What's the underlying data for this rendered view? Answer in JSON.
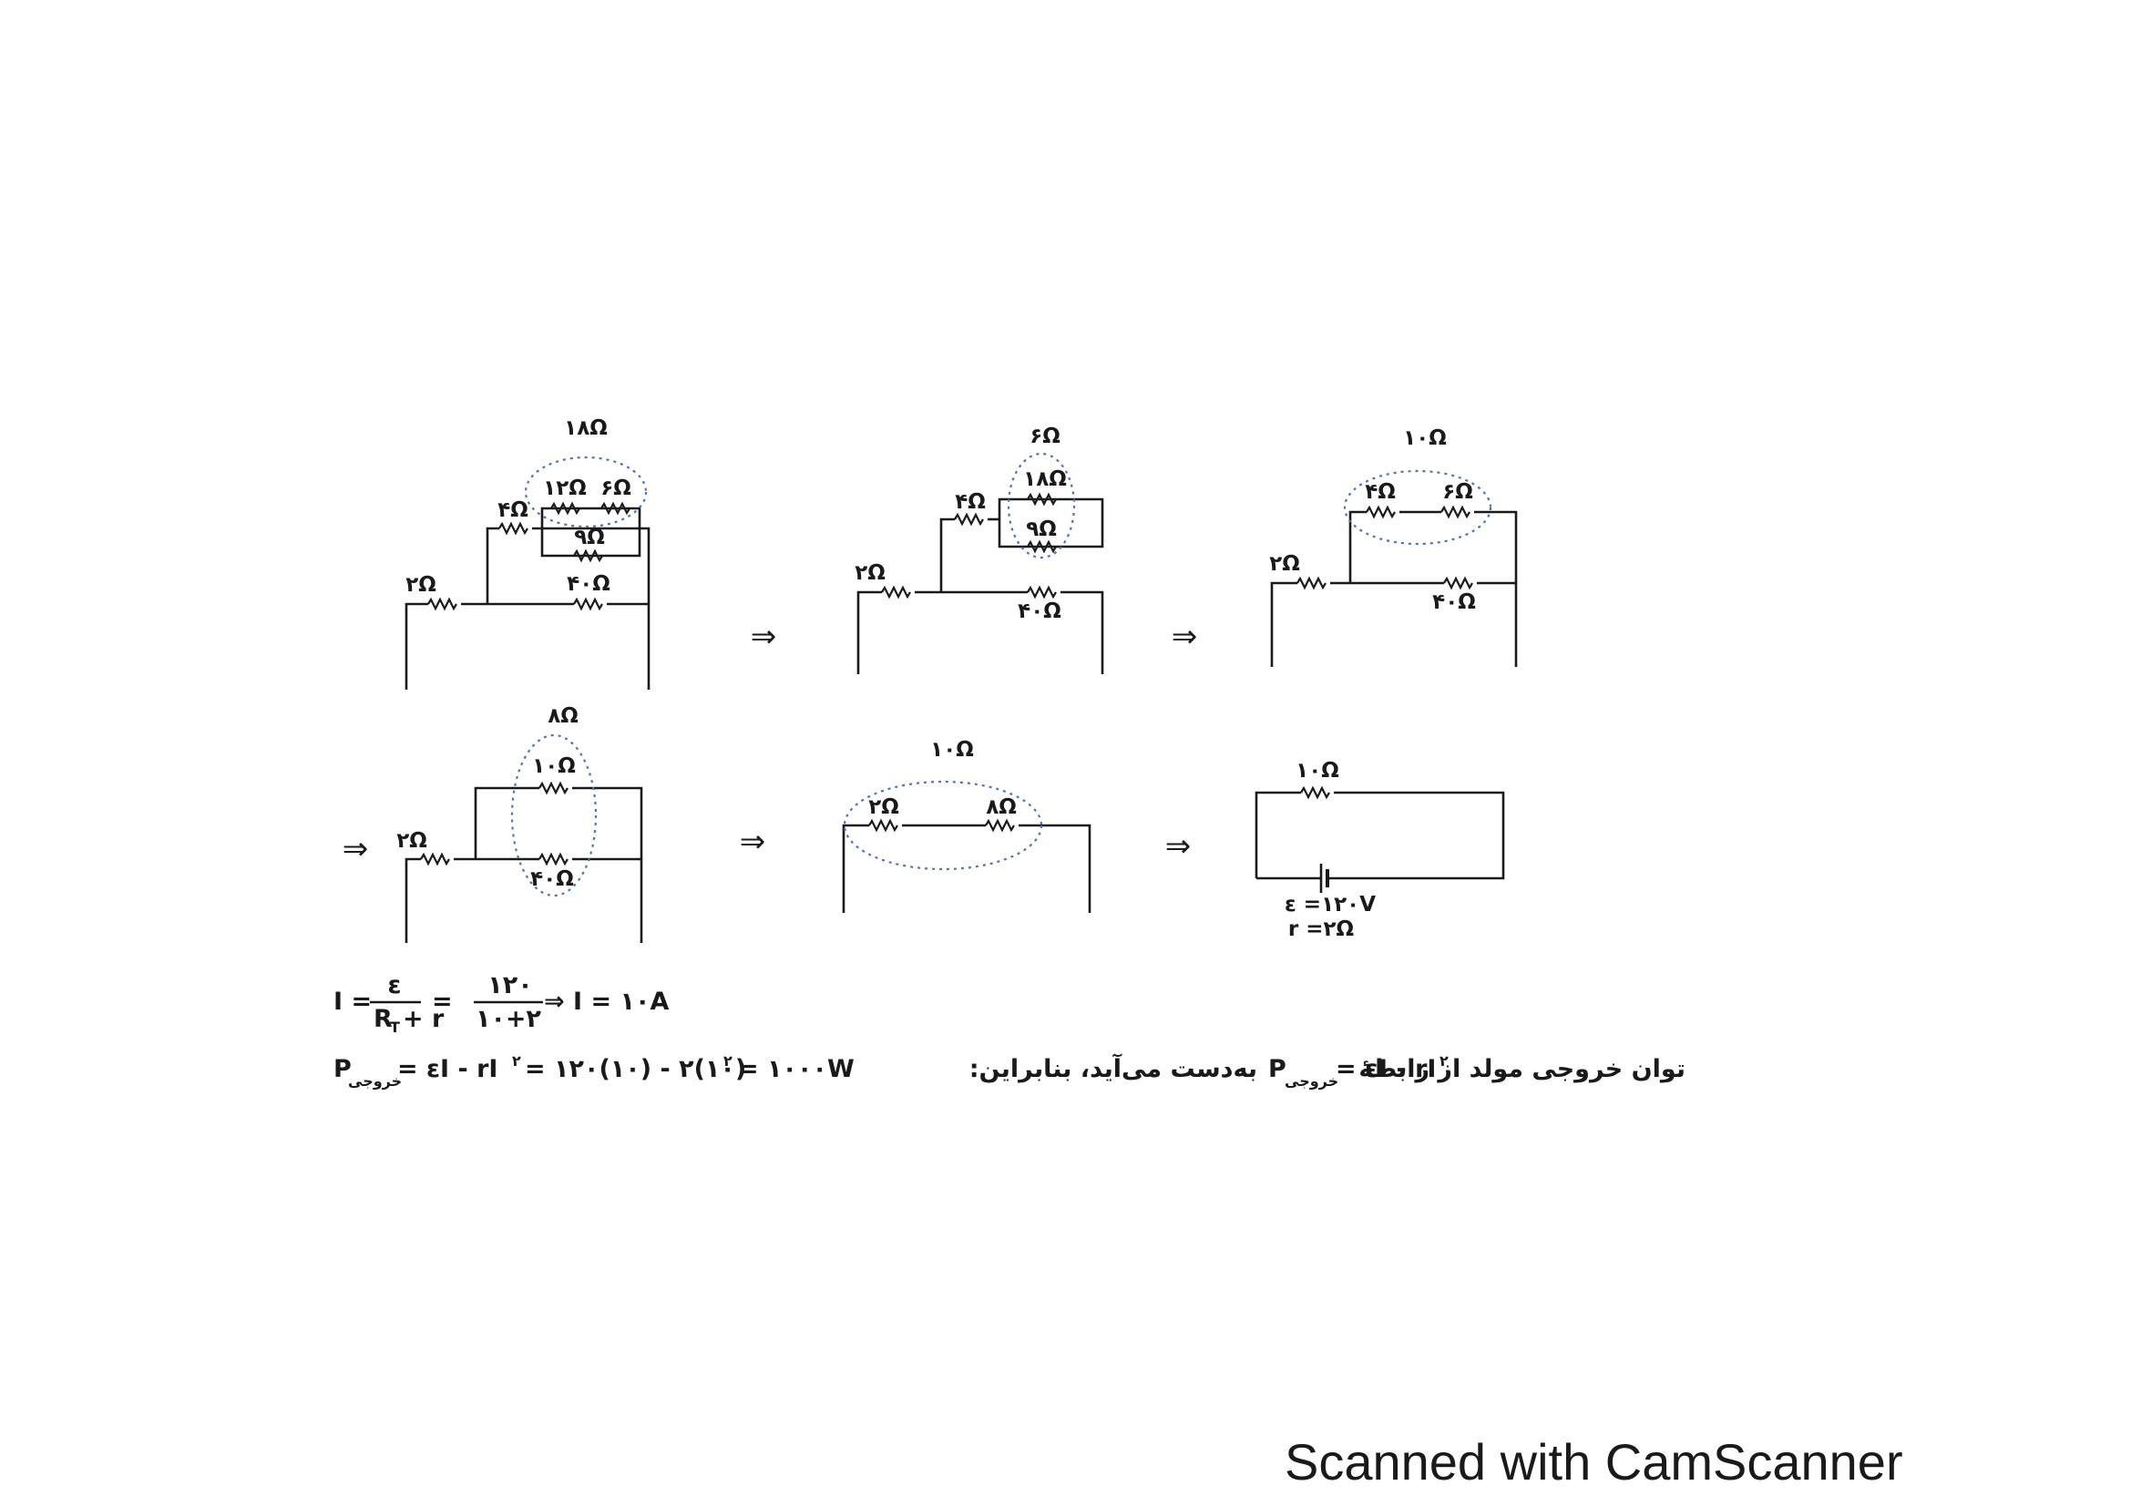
{
  "circuits": {
    "c1": {
      "r18": "۱۸Ω",
      "r12": "۱۲Ω",
      "r6": "۶Ω",
      "r4": "۴Ω",
      "r9": "۹Ω",
      "r2": "۲Ω",
      "r40": "۴۰Ω"
    },
    "c2": {
      "r6": "۶Ω",
      "r18": "۱۸Ω",
      "r4": "۴Ω",
      "r9": "۹Ω",
      "r2": "۲Ω",
      "r40": "۴۰Ω"
    },
    "c3": {
      "r10": "۱۰Ω",
      "r4": "۴Ω",
      "r6": "۶Ω",
      "r2": "۲Ω",
      "r40": "۴۰Ω"
    },
    "c4": {
      "r8": "۸Ω",
      "r10": "۱۰Ω",
      "r2": "۲Ω",
      "r40": "۴۰Ω"
    },
    "c5": {
      "r10": "۱۰Ω",
      "r2": "۲Ω",
      "r8": "۸Ω"
    },
    "c6": {
      "r10": "۱۰Ω",
      "emf": "ε =۱۲۰V",
      "r": "r =۲Ω"
    }
  },
  "arrows": [
    "⇒",
    "⇒",
    "⇒",
    "⇒",
    "⇒"
  ],
  "equations": {
    "current_lhs": "I =",
    "current_num": "ε",
    "current_den": "R",
    "current_den_sub": "T",
    "current_den_tail": "+ r",
    "current_eq": "=",
    "current_num2": "۱۲۰",
    "current_den2": "۱۰+۲",
    "current_result": "⇒ I = ۱۰A",
    "power_p": "P",
    "power_sub": "خروجی",
    "power_rest": "= εI - rI",
    "power_sup": "۲",
    "power_calc": "= ۱۲۰(۱۰) - ۲(۱۰)",
    "power_sup2": "۲",
    "power_result": "= ۱۰۰۰W"
  },
  "explanation": {
    "text1": "توان خروجی مولد از رابطهٔ",
    "formula_p": "P",
    "formula_sub": "خروجی",
    "formula_rest": "= εI - rI",
    "formula_sup": "۲",
    "text2": "به‌دست می‌آید، بنابراین:"
  },
  "watermark": "Scanned with CamScanner"
}
